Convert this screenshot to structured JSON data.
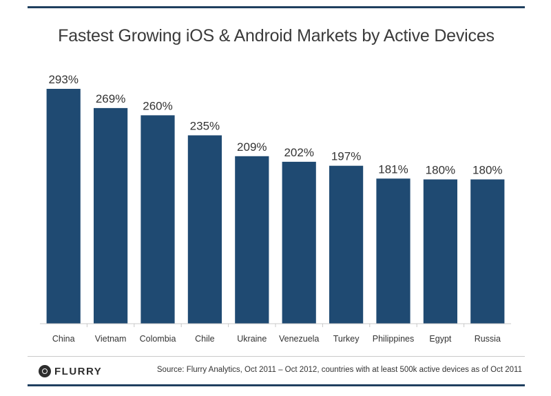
{
  "chart_data": {
    "type": "bar",
    "title": "Fastest Growing iOS & Android Markets by Active Devices",
    "categories": [
      "China",
      "Vietnam",
      "Colombia",
      "Chile",
      "Ukraine",
      "Venezuela",
      "Turkey",
      "Philippines",
      "Egypt",
      "Russia"
    ],
    "values": [
      293,
      269,
      260,
      235,
      209,
      202,
      197,
      181,
      180,
      180
    ],
    "value_labels": [
      "293%",
      "269%",
      "260%",
      "235%",
      "209%",
      "202%",
      "197%",
      "181%",
      "180%",
      "180%"
    ],
    "xlabel": "",
    "ylabel": "",
    "unit": "%",
    "ylim": [
      0,
      293
    ],
    "grid": false,
    "legend": "none",
    "bar_color": "#1f4a72"
  },
  "footer": {
    "logo_text": "FLURRY",
    "source": "Source: Flurry Analytics, Oct 2011 – Oct 2012, countries with at least 500k active devices as of Oct 2011"
  },
  "colors": {
    "rule": "#1f3f5f",
    "title_text": "#3a3a3a",
    "bar": "#1f4a72"
  }
}
